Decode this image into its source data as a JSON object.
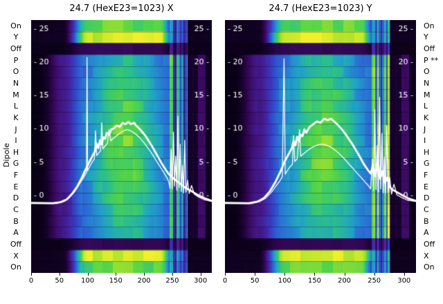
{
  "figure": {
    "background": "#ffffff"
  },
  "axis": {
    "dipole_label": "Dipole"
  },
  "channel_labels": {
    "left": [
      "On",
      "Y",
      "Off",
      "P",
      "O",
      "N",
      "M",
      "L",
      "K",
      "J",
      "I",
      "H",
      "G",
      "F",
      "E",
      "D",
      "C",
      "B",
      "A",
      "Off",
      "X",
      "On"
    ],
    "right": [
      "On",
      "Y",
      "Off",
      "P **",
      "O",
      "N",
      "M",
      "L",
      "K",
      "J",
      "I",
      "H",
      "G",
      "F",
      "E",
      "D",
      "C",
      "B",
      "A",
      "Off",
      "X",
      "On"
    ]
  },
  "colors": {
    "colormap": [
      "#02000a",
      "#1b0333",
      "#3c0a63",
      "#45209c",
      "#3542c8",
      "#2a6fd4",
      "#21a0c8",
      "#2cc08a",
      "#52d449",
      "#a8e22c",
      "#eff02b"
    ],
    "curve": "#ffffff",
    "text": "#000000",
    "inner_tick_text": "#ffffff"
  },
  "chart_data": [
    {
      "type": "heatmap",
      "title": "24.7 (HexE23=1023) X",
      "x_ticks": [
        0,
        50,
        100,
        150,
        200,
        250,
        300
      ],
      "x_range": [
        0,
        320
      ],
      "inner_value_ticks": [
        25,
        20,
        15,
        10,
        5,
        0
      ],
      "v_axis": {
        "top": 26.2,
        "bottom": -11.7
      },
      "row_kinds": [
        "on",
        "y",
        "off",
        "main",
        "main",
        "main",
        "main",
        "main",
        "main",
        "main",
        "main",
        "main",
        "main",
        "main",
        "main",
        "main",
        "main",
        "main",
        "main",
        "off",
        "x",
        "on"
      ],
      "series": [
        {
          "name": "smoothed-profile",
          "line_width": 2.8,
          "points": [
            [
              0,
              -1.2
            ],
            [
              38,
              -1.25
            ],
            [
              52,
              -1.1
            ],
            [
              63,
              -0.7
            ],
            [
              73,
              0.2
            ],
            [
              82,
              1.3
            ],
            [
              90,
              2.6
            ],
            [
              97,
              3.9
            ],
            [
              103,
              4.9
            ],
            [
              109,
              5.9
            ],
            [
              113,
              6.5
            ],
            [
              116,
              7.7
            ],
            [
              119,
              7.0
            ],
            [
              122,
              8.2
            ],
            [
              125,
              7.6
            ],
            [
              128,
              8.6
            ],
            [
              131,
              8.4
            ],
            [
              134,
              9.3
            ],
            [
              138,
              9.0
            ],
            [
              142,
              9.8
            ],
            [
              147,
              10.0
            ],
            [
              152,
              10.4
            ],
            [
              157,
              10.2
            ],
            [
              162,
              10.8
            ],
            [
              167,
              10.6
            ],
            [
              172,
              10.9
            ],
            [
              177,
              10.6
            ],
            [
              182,
              10.8
            ],
            [
              187,
              10.3
            ],
            [
              192,
              9.9
            ],
            [
              197,
              9.4
            ],
            [
              202,
              8.9
            ],
            [
              208,
              8.1
            ],
            [
              214,
              7.3
            ],
            [
              220,
              6.4
            ],
            [
              226,
              5.5
            ],
            [
              232,
              4.6
            ],
            [
              238,
              3.8
            ],
            [
              244,
              3.1
            ],
            [
              250,
              2.6
            ],
            [
              256,
              2.2
            ],
            [
              262,
              1.8
            ],
            [
              268,
              1.4
            ],
            [
              274,
              1.0
            ],
            [
              281,
              0.7
            ],
            [
              289,
              0.3
            ],
            [
              297,
              -0.1
            ],
            [
              307,
              -0.5
            ],
            [
              320,
              -0.9
            ]
          ]
        },
        {
          "name": "raw-profile",
          "line_width": 1.3,
          "points": [
            [
              0,
              -1.3
            ],
            [
              45,
              -1.3
            ],
            [
              58,
              -1.0
            ],
            [
              68,
              -0.4
            ],
            [
              78,
              0.6
            ],
            [
              86,
              1.7
            ],
            [
              92,
              2.5
            ],
            [
              96,
              3.1
            ],
            [
              98,
              3.3
            ],
            [
              99,
              20.6
            ],
            [
              100,
              3.6
            ],
            [
              104,
              4.3
            ],
            [
              108,
              4.9
            ],
            [
              112,
              5.4
            ],
            [
              114,
              9.6
            ],
            [
              116,
              5.9
            ],
            [
              120,
              6.3
            ],
            [
              123,
              6.6
            ],
            [
              125,
              10.8
            ],
            [
              127,
              6.9
            ],
            [
              131,
              7.3
            ],
            [
              135,
              7.7
            ],
            [
              138,
              9.8
            ],
            [
              141,
              8.1
            ],
            [
              146,
              8.5
            ],
            [
              152,
              8.9
            ],
            [
              158,
              9.3
            ],
            [
              164,
              9.6
            ],
            [
              170,
              9.8
            ],
            [
              176,
              9.6
            ],
            [
              182,
              9.3
            ],
            [
              188,
              8.9
            ],
            [
              194,
              8.4
            ],
            [
              200,
              7.8
            ],
            [
              206,
              7.1
            ],
            [
              212,
              6.4
            ],
            [
              218,
              5.6
            ],
            [
              224,
              4.8
            ],
            [
              230,
              4.0
            ],
            [
              236,
              3.2
            ],
            [
              241,
              2.5
            ],
            [
              244,
              1.9
            ],
            [
              246,
              1.0
            ],
            [
              248,
              6.8
            ],
            [
              250,
              0.9
            ],
            [
              252,
              9.4
            ],
            [
              254,
              1.3
            ],
            [
              256,
              5.8
            ],
            [
              258,
              0.7
            ],
            [
              260,
              11.8
            ],
            [
              262,
              1.1
            ],
            [
              264,
              7.6
            ],
            [
              266,
              0.5
            ],
            [
              268,
              4.4
            ],
            [
              270,
              0.3
            ],
            [
              272,
              8.2
            ],
            [
              274,
              0.4
            ],
            [
              277,
              2.2
            ],
            [
              280,
              0.2
            ],
            [
              284,
              1.4
            ],
            [
              289,
              0.1
            ],
            [
              296,
              -0.3
            ],
            [
              306,
              -0.7
            ],
            [
              320,
              -1.0
            ]
          ]
        }
      ]
    },
    {
      "type": "heatmap",
      "title": "24.7 (HexE23=1023) Y",
      "x_ticks": [
        0,
        50,
        100,
        150,
        200,
        250,
        300
      ],
      "x_range": [
        0,
        320
      ],
      "inner_value_ticks": [
        25,
        20,
        15,
        10,
        5,
        0
      ],
      "v_axis": {
        "top": 26.2,
        "bottom": -11.7
      },
      "row_kinds": [
        "on",
        "y",
        "off",
        "main",
        "main",
        "main",
        "main",
        "main",
        "main",
        "main",
        "main",
        "main",
        "main",
        "main",
        "main",
        "main",
        "main",
        "main",
        "main",
        "off",
        "x",
        "on"
      ],
      "series": [
        {
          "name": "smoothed-profile",
          "line_width": 2.8,
          "points": [
            [
              0,
              -1.2
            ],
            [
              40,
              -1.25
            ],
            [
              55,
              -1.0
            ],
            [
              65,
              -0.5
            ],
            [
              75,
              0.5
            ],
            [
              85,
              2.0
            ],
            [
              93,
              3.5
            ],
            [
              100,
              5.0
            ],
            [
              106,
              6.0
            ],
            [
              112,
              7.0
            ],
            [
              115,
              8.1
            ],
            [
              118,
              7.4
            ],
            [
              121,
              8.7
            ],
            [
              124,
              8.0
            ],
            [
              127,
              9.0
            ],
            [
              130,
              8.8
            ],
            [
              133,
              9.8
            ],
            [
              136,
              9.3
            ],
            [
              142,
              10.2
            ],
            [
              148,
              10.6
            ],
            [
              154,
              11.0
            ],
            [
              160,
              10.8
            ],
            [
              166,
              11.4
            ],
            [
              172,
              11.2
            ],
            [
              178,
              11.4
            ],
            [
              184,
              10.9
            ],
            [
              190,
              10.4
            ],
            [
              196,
              9.8
            ],
            [
              202,
              9.1
            ],
            [
              208,
              8.3
            ],
            [
              214,
              7.5
            ],
            [
              220,
              6.6
            ],
            [
              226,
              5.7
            ],
            [
              232,
              4.7
            ],
            [
              238,
              3.9
            ],
            [
              244,
              3.2
            ],
            [
              248,
              4.5
            ],
            [
              252,
              2.8
            ],
            [
              256,
              5.2
            ],
            [
              260,
              2.4
            ],
            [
              264,
              3.6
            ],
            [
              268,
              1.8
            ],
            [
              272,
              2.6
            ],
            [
              276,
              1.2
            ],
            [
              280,
              0.8
            ],
            [
              288,
              0.4
            ],
            [
              296,
              0.0
            ],
            [
              306,
              -0.5
            ],
            [
              320,
              -0.9
            ]
          ]
        },
        {
          "name": "raw-profile",
          "line_width": 1.3,
          "points": [
            [
              0,
              -1.3
            ],
            [
              45,
              -1.3
            ],
            [
              58,
              -1.0
            ],
            [
              68,
              -0.5
            ],
            [
              78,
              0.4
            ],
            [
              86,
              1.4
            ],
            [
              92,
              2.1
            ],
            [
              96,
              2.7
            ],
            [
              99,
              20.4
            ],
            [
              101,
              3.1
            ],
            [
              105,
              3.7
            ],
            [
              109,
              4.2
            ],
            [
              113,
              4.6
            ],
            [
              115,
              8.9
            ],
            [
              117,
              5.0
            ],
            [
              121,
              5.4
            ],
            [
              125,
              9.8
            ],
            [
              127,
              5.8
            ],
            [
              131,
              6.1
            ],
            [
              135,
              6.4
            ],
            [
              139,
              6.7
            ],
            [
              144,
              7.0
            ],
            [
              150,
              7.3
            ],
            [
              156,
              7.5
            ],
            [
              162,
              7.6
            ],
            [
              168,
              7.5
            ],
            [
              174,
              7.3
            ],
            [
              180,
              7.0
            ],
            [
              186,
              6.6
            ],
            [
              192,
              6.1
            ],
            [
              198,
              5.6
            ],
            [
              204,
              5.0
            ],
            [
              210,
              4.4
            ],
            [
              216,
              3.8
            ],
            [
              222,
              3.2
            ],
            [
              228,
              2.6
            ],
            [
              234,
              2.0
            ],
            [
              240,
              1.4
            ],
            [
              244,
              0.9
            ],
            [
              247,
              5.4
            ],
            [
              249,
              0.6
            ],
            [
              251,
              12.8
            ],
            [
              253,
              0.8
            ],
            [
              255,
              7.4
            ],
            [
              257,
              0.4
            ],
            [
              259,
              14.6
            ],
            [
              261,
              0.9
            ],
            [
              263,
              9.2
            ],
            [
              265,
              0.3
            ],
            [
              267,
              5.6
            ],
            [
              269,
              0.2
            ],
            [
              271,
              10.4
            ],
            [
              273,
              0.3
            ],
            [
              276,
              2.6
            ],
            [
              279,
              0.1
            ],
            [
              283,
              1.6
            ],
            [
              288,
              0.0
            ],
            [
              296,
              -0.4
            ],
            [
              306,
              -0.8
            ],
            [
              320,
              -1.0
            ]
          ]
        }
      ]
    }
  ]
}
